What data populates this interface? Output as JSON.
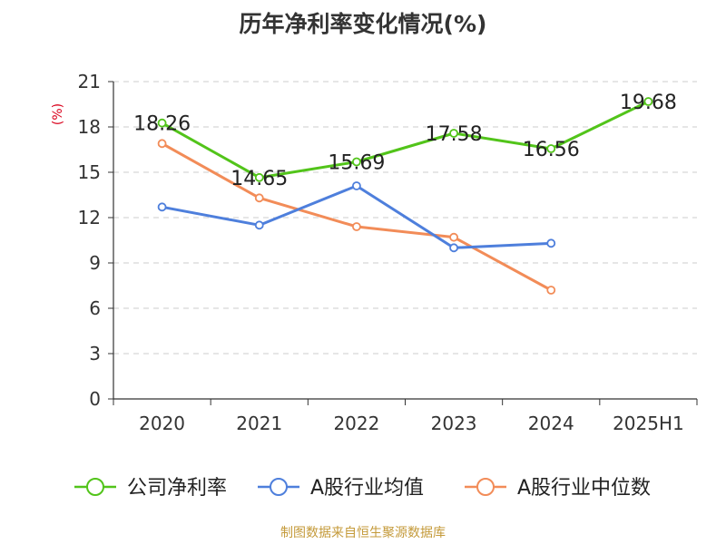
{
  "chart_data": {
    "type": "line",
    "title": "历年净利率变化情况(%)",
    "ylabel": "(%)",
    "xlabel": "",
    "categories": [
      "2020",
      "2021",
      "2022",
      "2023",
      "2024",
      "2025H1"
    ],
    "ylim": [
      0,
      21
    ],
    "yticks": [
      0,
      3,
      6,
      9,
      12,
      15,
      18,
      21
    ],
    "grid": true,
    "legend_position": "bottom",
    "series": [
      {
        "name": "公司净利率",
        "color": "#52c41a",
        "values": [
          18.26,
          14.65,
          15.69,
          17.58,
          16.56,
          19.68
        ],
        "show_labels": true
      },
      {
        "name": "A股行业均值",
        "color": "#4e7fdc",
        "values": [
          12.7,
          11.5,
          14.1,
          10.0,
          10.3,
          null
        ],
        "show_labels": false
      },
      {
        "name": "A股行业中位数",
        "color": "#f28c58",
        "values": [
          16.9,
          13.3,
          11.4,
          10.7,
          7.2,
          null
        ],
        "show_labels": false
      }
    ],
    "source": "制图数据来自恒生聚源数据库"
  }
}
